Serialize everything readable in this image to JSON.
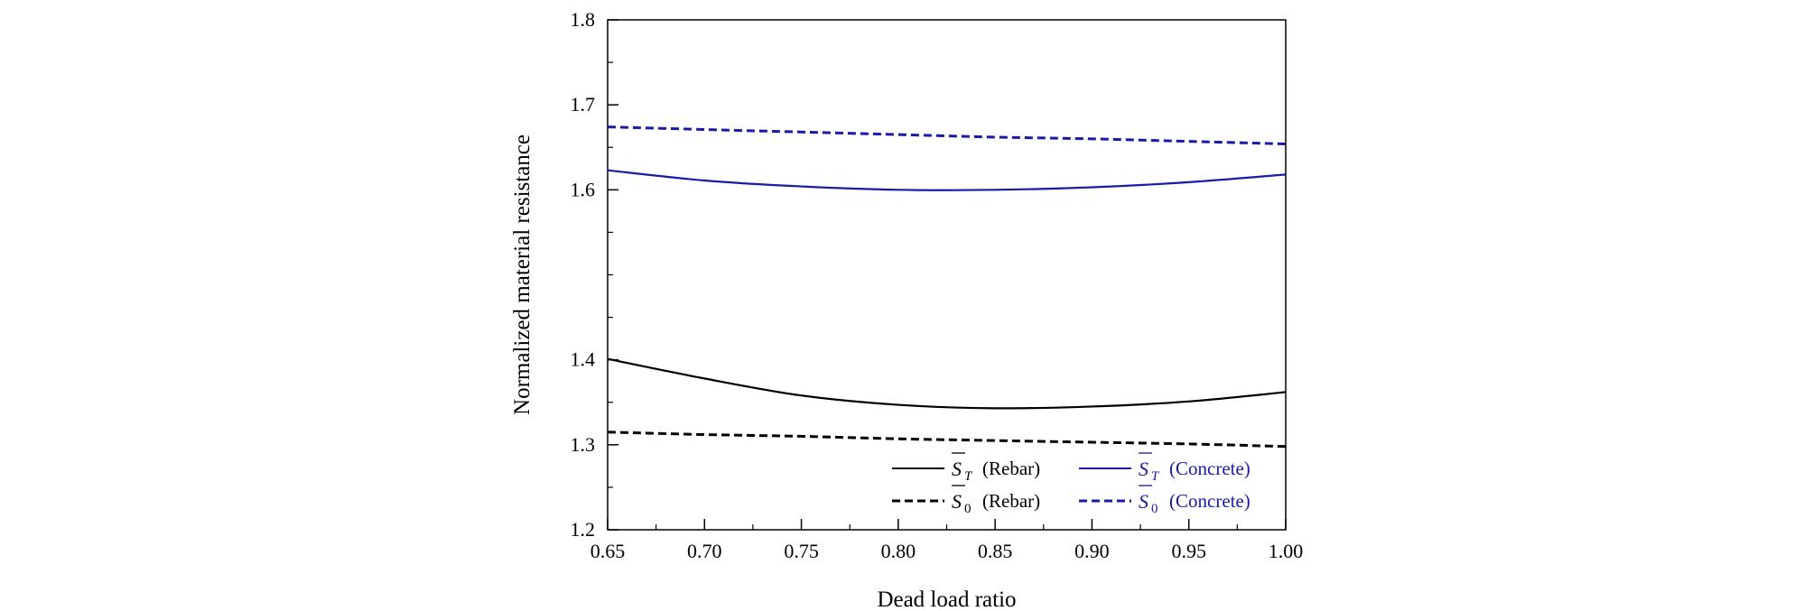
{
  "chart_data": {
    "type": "line",
    "title": "",
    "xlabel": "Dead load ratio",
    "ylabel": "Normalized material resistance",
    "xlim": [
      0.65,
      1.0
    ],
    "ylim": [
      1.2,
      1.8
    ],
    "x_ticks": [
      "0.65",
      "0.70",
      "0.75",
      "0.80",
      "0.85",
      "0.90",
      "0.95",
      "1.00"
    ],
    "y_ticks": [
      "1.2",
      "1.3",
      "1.4",
      "1.6",
      "1.7",
      "1.8"
    ],
    "y_tick_values": [
      1.2,
      1.3,
      1.4,
      1.6,
      1.7,
      1.8
    ],
    "y_minor_tick_values": [
      1.25,
      1.35,
      1.45,
      1.5,
      1.55,
      1.65,
      1.75
    ],
    "grid": false,
    "legend_position": "bottom-right",
    "x": [
      0.65,
      0.7,
      0.75,
      0.8,
      0.85,
      0.9,
      0.95,
      1.0
    ],
    "series": [
      {
        "symbol": "S",
        "subscript": "T",
        "qualifier": "(Rebar)",
        "color": "#000000",
        "dashed": false,
        "values": [
          1.401,
          1.378,
          1.358,
          1.347,
          1.343,
          1.345,
          1.351,
          1.362
        ]
      },
      {
        "symbol": "S",
        "subscript": "0",
        "qualifier": "(Rebar)",
        "color": "#000000",
        "dashed": true,
        "values": [
          1.315,
          1.312,
          1.31,
          1.307,
          1.305,
          1.303,
          1.301,
          1.298
        ]
      },
      {
        "symbol": "S",
        "subscript": "T",
        "qualifier": "(Concrete)",
        "color": "#1a1aa8",
        "dashed": false,
        "values": [
          1.623,
          1.611,
          1.604,
          1.6,
          1.6,
          1.603,
          1.609,
          1.618
        ]
      },
      {
        "symbol": "S",
        "subscript": "0",
        "qualifier": "(Concrete)",
        "color": "#1a1aa8",
        "dashed": true,
        "values": [
          1.674,
          1.671,
          1.668,
          1.665,
          1.662,
          1.66,
          1.657,
          1.654
        ]
      }
    ]
  }
}
